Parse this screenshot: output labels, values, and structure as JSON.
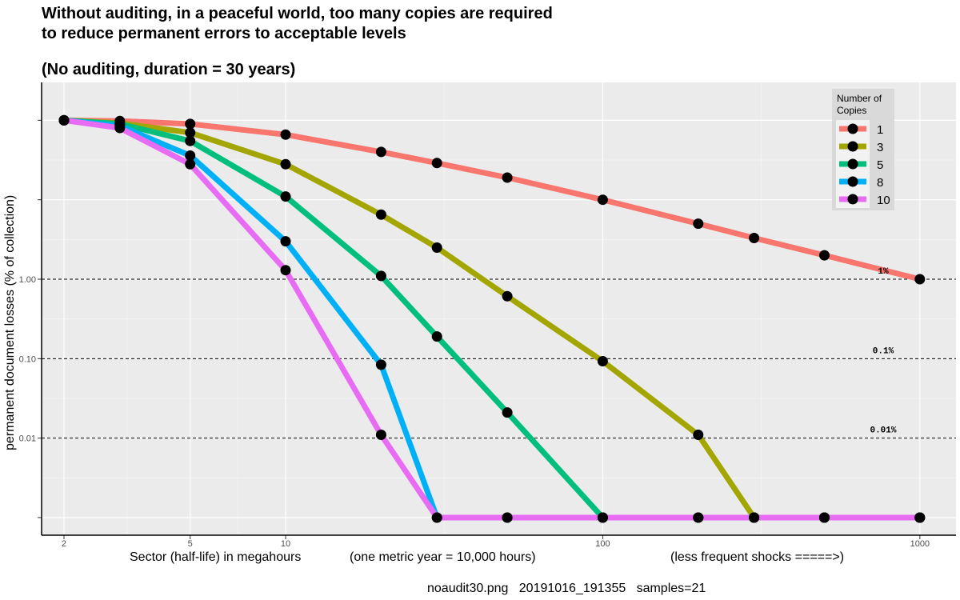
{
  "header": {
    "title_line1": "Without auditing, in a peaceful world, too many copies are required",
    "title_line2": "to reduce permanent errors to acceptable levels",
    "subtitle": "(No auditing, duration = 30 years)"
  },
  "axes": {
    "ylabel": "permanent document losses (% of collection)",
    "xlabel_parts": [
      "Sector (half-life) in megahours",
      "(one metric year = 10,000 hours)",
      "(less frequent shocks =====>)"
    ]
  },
  "caption": "noaudit30.png   20191016_191355   samples=21",
  "legend": {
    "title_line1": "Number of",
    "title_line2": "Copies",
    "placement": "top-right"
  },
  "chart_data": {
    "type": "line",
    "x_scale": "log",
    "y_scale": "log",
    "xlim": [
      1.7,
      1300
    ],
    "ylim": [
      0.0006,
      300
    ],
    "x_ticks": [
      2,
      5,
      10,
      100,
      1000
    ],
    "x_tick_labels": [
      "2",
      "5",
      "10",
      "100",
      "1000"
    ],
    "y_ticks": [
      0.001,
      0.01,
      0.1,
      1,
      10,
      100
    ],
    "y_tick_labels": [
      "",
      "0.01",
      "0.10",
      "1.00",
      "",
      ""
    ],
    "grid": true,
    "reference_lines": [
      {
        "y": 1,
        "label": "1%"
      },
      {
        "y": 0.1,
        "label": "0.1%"
      },
      {
        "y": 0.01,
        "label": "0.01%"
      }
    ],
    "x": [
      2,
      3,
      5,
      10,
      20,
      30,
      50,
      100,
      200,
      300,
      500,
      1000
    ],
    "series": [
      {
        "name": "1",
        "color": "#F8766D",
        "values": [
          100,
          98,
          90,
          66,
          40,
          29,
          19,
          10,
          5,
          3.3,
          2,
          1
        ]
      },
      {
        "name": "3",
        "color": "#A3A500",
        "values": [
          100,
          92,
          70,
          28,
          6.5,
          2.5,
          0.61,
          0.093,
          0.011,
          0.001,
          0.001,
          0.001
        ]
      },
      {
        "name": "5",
        "color": "#00BF7D",
        "values": [
          100,
          90,
          55,
          11,
          1.1,
          0.19,
          0.021,
          0.001,
          0.001,
          0.001,
          0.001,
          0.001
        ]
      },
      {
        "name": "8",
        "color": "#00B0F6",
        "values": [
          100,
          85,
          36,
          3,
          0.084,
          0.001,
          0.001,
          0.001,
          0.001,
          0.001,
          0.001,
          0.001
        ]
      },
      {
        "name": "10",
        "color": "#E76BF3",
        "values": [
          100,
          80,
          28,
          1.3,
          0.011,
          0.001,
          0.001,
          0.001,
          0.001,
          0.001,
          0.001,
          0.001
        ]
      }
    ]
  }
}
